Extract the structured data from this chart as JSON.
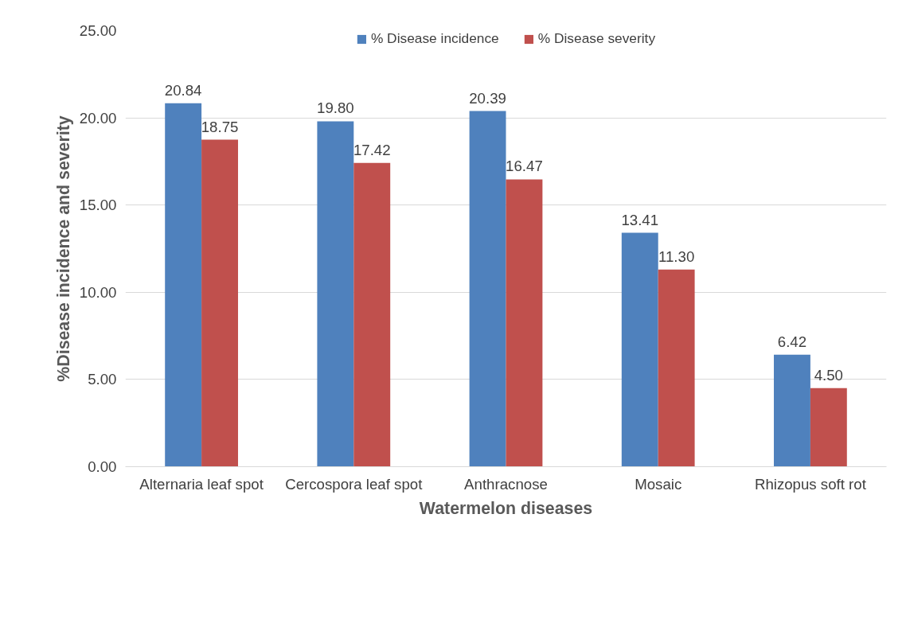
{
  "chart_data": {
    "type": "bar",
    "xlabel": "Watermelon diseases",
    "ylabel": "%Disease incidence and severity",
    "categories": [
      "Alternaria leaf spot",
      "Cercospora leaf spot",
      "Anthracnose",
      "Mosaic",
      "Rhizopus soft rot"
    ],
    "series": [
      {
        "name": "% Disease incidence",
        "color": "#4f81bd",
        "values": [
          20.84,
          19.8,
          20.39,
          13.41,
          6.42
        ],
        "value_labels": [
          "20.84",
          "19.80",
          "20.39",
          "13.41",
          "6.42"
        ]
      },
      {
        "name": "% Disease severity",
        "color": "#c0504d",
        "values": [
          18.75,
          17.42,
          16.47,
          11.3,
          4.5
        ],
        "value_labels": [
          "18.75",
          "17.42",
          "16.47",
          "11.30",
          "4.50"
        ]
      }
    ],
    "ylim": [
      0,
      25
    ],
    "yticks": [
      {
        "value": 0,
        "label": "0.00"
      },
      {
        "value": 5,
        "label": "5.00"
      },
      {
        "value": 10,
        "label": "10.00"
      },
      {
        "value": 15,
        "label": "15.00"
      },
      {
        "value": 20,
        "label": "20.00"
      },
      {
        "value": 25,
        "label": "25.00"
      }
    ],
    "grid": "y",
    "legend": "top"
  }
}
